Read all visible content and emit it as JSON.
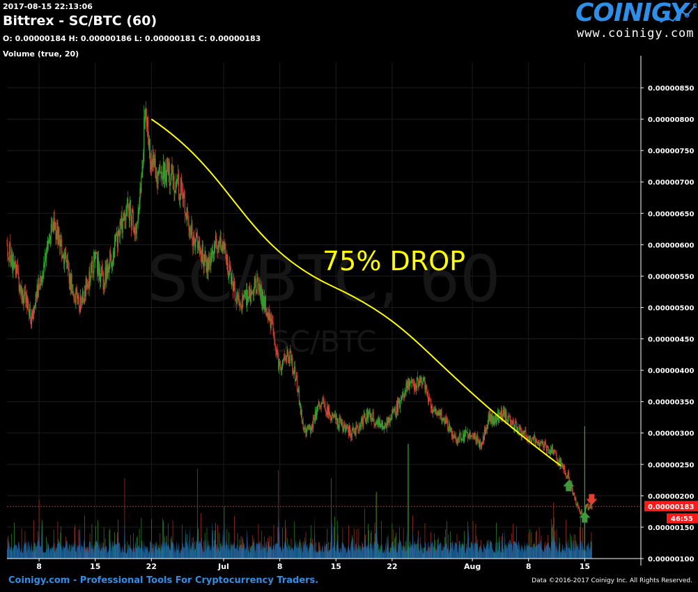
{
  "header": {
    "timestamp": "2017-08-15 22:13:06",
    "title": "Bittrex - SC/BTC (60)",
    "ohlc": "O: 0.00000184 H: 0.00000186 L: 0.00000181 C: 0.00000183",
    "volume_label": "Volume (true, 20)"
  },
  "logo": {
    "name": "COINIGY",
    "url": "www.coinigy.com",
    "icon": "chart-swoosh-icon"
  },
  "watermark": {
    "big": "SC/BTC, 60",
    "small": "SC/BTC"
  },
  "annotation": {
    "text": "75% DROP",
    "color": "#ffff00"
  },
  "current_price": {
    "value": 1.83e-06,
    "label": "0.00000183",
    "countdown": "46:55",
    "color": "#ff1a1a"
  },
  "footer": {
    "left": "Coinigy.com - Professional Tools For Cryptocurrency Traders.",
    "right": "Data ©2016-2017 Coinigy Inc. All Rights Reserved."
  },
  "chart_data": {
    "type": "candlestick",
    "x_tick_labels": [
      "8",
      "15",
      "22",
      "Jul",
      "8",
      "15",
      "22",
      "Aug",
      "8",
      "15"
    ],
    "y_tick_labels": [
      "0.00000850",
      "0.00000800",
      "0.00000750",
      "0.00000700",
      "0.00000650",
      "0.00000600",
      "0.00000550",
      "0.00000500",
      "0.00000450",
      "0.00000400",
      "0.00000350",
      "0.00000300",
      "0.00000250",
      "0.00000200",
      "0.00000150",
      "0.00000100"
    ],
    "y_ticks": [
      850,
      800,
      750,
      700,
      650,
      600,
      550,
      500,
      450,
      400,
      350,
      300,
      250,
      200,
      150,
      100
    ],
    "y_unit_scale": 1e-08,
    "ylim": [
      100,
      890
    ],
    "xlim": [
      "2017-06-04",
      "2017-08-22"
    ],
    "price_path": [
      [
        "2017-06-04",
        600
      ],
      [
        "2017-06-06",
        520
      ],
      [
        "2017-06-07",
        480
      ],
      [
        "2017-06-09",
        600
      ],
      [
        "2017-06-10",
        630
      ],
      [
        "2017-06-12",
        540
      ],
      [
        "2017-06-13",
        500
      ],
      [
        "2017-06-15",
        580
      ],
      [
        "2017-06-16",
        540
      ],
      [
        "2017-06-18",
        620
      ],
      [
        "2017-06-19",
        670
      ],
      [
        "2017-06-20",
        620
      ],
      [
        "2017-06-21",
        740
      ],
      [
        "2017-06-21",
        830
      ],
      [
        "2017-06-22",
        730
      ],
      [
        "2017-06-23",
        710
      ],
      [
        "2017-06-24",
        720
      ],
      [
        "2017-06-26",
        680
      ],
      [
        "2017-06-27",
        620
      ],
      [
        "2017-06-29",
        570
      ],
      [
        "2017-06-30",
        610
      ],
      [
        "2017-07-01",
        590
      ],
      [
        "2017-07-02",
        540
      ],
      [
        "2017-07-03",
        500
      ],
      [
        "2017-07-05",
        540
      ],
      [
        "2017-07-06",
        510
      ],
      [
        "2017-07-07",
        470
      ],
      [
        "2017-07-08",
        400
      ],
      [
        "2017-07-09",
        430
      ],
      [
        "2017-07-10",
        390
      ],
      [
        "2017-07-11",
        300
      ],
      [
        "2017-07-12",
        310
      ],
      [
        "2017-07-13",
        350
      ],
      [
        "2017-07-15",
        320
      ],
      [
        "2017-07-17",
        300
      ],
      [
        "2017-07-19",
        330
      ],
      [
        "2017-07-21",
        310
      ],
      [
        "2017-07-23",
        350
      ],
      [
        "2017-07-24",
        380
      ],
      [
        "2017-07-26",
        380
      ],
      [
        "2017-07-27",
        340
      ],
      [
        "2017-07-28",
        330
      ],
      [
        "2017-07-30",
        290
      ],
      [
        "2017-08-01",
        300
      ],
      [
        "2017-08-02",
        280
      ],
      [
        "2017-08-03",
        320
      ],
      [
        "2017-08-05",
        330
      ],
      [
        "2017-08-07",
        300
      ],
      [
        "2017-08-09",
        290
      ],
      [
        "2017-08-11",
        270
      ],
      [
        "2017-08-13",
        230
      ],
      [
        "2017-08-14",
        185
      ],
      [
        "2017-08-15",
        160
      ],
      [
        "2017-08-15",
        183
      ]
    ],
    "trend_line": {
      "from": [
        "2017-06-22",
        800
      ],
      "to": [
        "2017-08-12",
        248
      ],
      "color": "#ffff00"
    },
    "markers": [
      {
        "date": "2017-08-13",
        "price": 215,
        "direction": "up",
        "color": "#3d9a3d"
      },
      {
        "date": "2017-08-15",
        "price": 165,
        "direction": "up",
        "color": "#3d9a3d"
      },
      {
        "date": "2017-08-15",
        "price": 195,
        "direction": "down",
        "color": "#e04030"
      }
    ],
    "colors": {
      "up": "#32a832",
      "down": "#d23c2c",
      "volume": "#1e6fb4",
      "grid": "#1c1c1c"
    },
    "grid": true
  }
}
